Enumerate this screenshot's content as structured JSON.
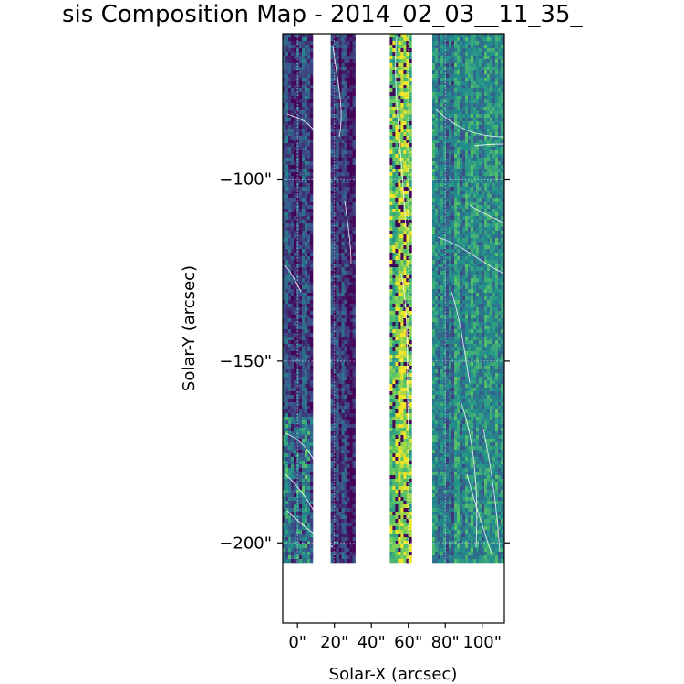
{
  "chart_data": {
    "type": "heatmap",
    "title": "sis Composition Map - 2014_02_03__11_35_",
    "xlabel": "Solar-X (arcsec)",
    "ylabel": "Solar-Y (arcsec)",
    "xlim": [
      -8,
      112
    ],
    "ylim": [
      -222,
      -60
    ],
    "x_ticks": [
      {
        "value": 0,
        "label": "0\""
      },
      {
        "value": 20,
        "label": "20\""
      },
      {
        "value": 40,
        "label": "40\""
      },
      {
        "value": 60,
        "label": "60\""
      },
      {
        "value": 80,
        "label": "80\""
      },
      {
        "value": 100,
        "label": "100\""
      }
    ],
    "y_ticks": [
      {
        "value": -100,
        "label": "−100\""
      },
      {
        "value": -150,
        "label": "−150\""
      },
      {
        "value": -200,
        "label": "−200\""
      }
    ],
    "grid": true,
    "colormap": "viridis",
    "data_y_range": [
      -205,
      -60
    ],
    "strips": [
      {
        "x0": -8,
        "x1": 7,
        "level": 0.22
      },
      {
        "x0": 18,
        "x1": 30,
        "level": 0.12
      },
      {
        "x0": 50,
        "x1": 61,
        "level": 0.75
      },
      {
        "x0": 73,
        "x1": 112,
        "level": 0.45
      }
    ],
    "contour_color": "#ffffff"
  }
}
